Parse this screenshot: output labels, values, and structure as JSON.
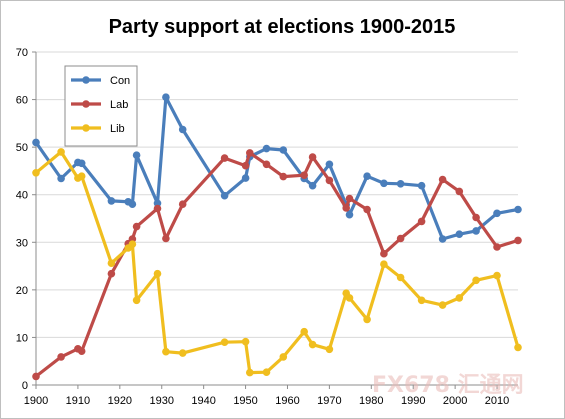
{
  "chart_data": {
    "type": "line",
    "title": "Party support at elections 1900-2015",
    "xlabel": "",
    "ylabel": "",
    "xlim": [
      1900,
      2015
    ],
    "ylim": [
      0,
      70
    ],
    "xticks": [
      1900,
      1910,
      1920,
      1930,
      1940,
      1950,
      1960,
      1970,
      1980,
      1990,
      2000,
      2010
    ],
    "yticks": [
      0,
      10,
      20,
      30,
      40,
      50,
      60,
      70
    ],
    "grid": "horizontal",
    "legend": "top-left",
    "series": [
      {
        "name": "Con",
        "color": "#4a7ebb",
        "points": [
          [
            1900,
            51
          ],
          [
            1906,
            43.4
          ],
          [
            1910,
            46.8
          ],
          [
            1910.9,
            46.6
          ],
          [
            1918,
            38.7
          ],
          [
            1922,
            38.5
          ],
          [
            1923,
            38
          ],
          [
            1924,
            48.3
          ],
          [
            1929,
            38.2
          ],
          [
            1931,
            60.5
          ],
          [
            1935,
            53.7
          ],
          [
            1945,
            39.8
          ],
          [
            1950,
            43.5
          ],
          [
            1951,
            48
          ],
          [
            1955,
            49.7
          ],
          [
            1959,
            49.4
          ],
          [
            1964,
            43.4
          ],
          [
            1966,
            41.9
          ],
          [
            1970,
            46.4
          ],
          [
            1974,
            37.9
          ],
          [
            1974.8,
            35.8
          ],
          [
            1979,
            43.9
          ],
          [
            1983,
            42.4
          ],
          [
            1987,
            42.3
          ],
          [
            1992,
            41.9
          ],
          [
            1997,
            30.7
          ],
          [
            2001,
            31.7
          ],
          [
            2005,
            32.4
          ],
          [
            2010,
            36.1
          ],
          [
            2015,
            36.9
          ]
        ]
      },
      {
        "name": "Lab",
        "color": "#be4b48",
        "points": [
          [
            1900,
            1.8
          ],
          [
            1906,
            5.9
          ],
          [
            1910,
            7.6
          ],
          [
            1910.9,
            7.1
          ],
          [
            1918,
            23.4
          ],
          [
            1922,
            29.7
          ],
          [
            1923,
            30.7
          ],
          [
            1924,
            33.3
          ],
          [
            1929,
            37.1
          ],
          [
            1931,
            30.8
          ],
          [
            1935,
            38
          ],
          [
            1945,
            47.7
          ],
          [
            1950,
            46.1
          ],
          [
            1951,
            48.8
          ],
          [
            1955,
            46.4
          ],
          [
            1959,
            43.8
          ],
          [
            1964,
            44.1
          ],
          [
            1966,
            47.9
          ],
          [
            1970,
            43
          ],
          [
            1974,
            37.2
          ],
          [
            1974.8,
            39.2
          ],
          [
            1979,
            36.9
          ],
          [
            1983,
            27.6
          ],
          [
            1987,
            30.8
          ],
          [
            1992,
            34.4
          ],
          [
            1997,
            43.2
          ],
          [
            2001,
            40.7
          ],
          [
            2005,
            35.2
          ],
          [
            2010,
            29
          ],
          [
            2015,
            30.4
          ]
        ]
      },
      {
        "name": "Lib",
        "color": "#f0be1f",
        "points": [
          [
            1900,
            44.6
          ],
          [
            1906,
            49
          ],
          [
            1910,
            43.5
          ],
          [
            1910.9,
            43.9
          ],
          [
            1918,
            25.6
          ],
          [
            1922,
            28.8
          ],
          [
            1923,
            29.6
          ],
          [
            1924,
            17.8
          ],
          [
            1929,
            23.4
          ],
          [
            1931,
            7
          ],
          [
            1935,
            6.7
          ],
          [
            1945,
            9
          ],
          [
            1950,
            9.1
          ],
          [
            1951,
            2.6
          ],
          [
            1955,
            2.7
          ],
          [
            1959,
            5.9
          ],
          [
            1964,
            11.2
          ],
          [
            1966,
            8.5
          ],
          [
            1970,
            7.5
          ],
          [
            1974,
            19.3
          ],
          [
            1974.8,
            18.3
          ],
          [
            1979,
            13.8
          ],
          [
            1983,
            25.4
          ],
          [
            1987,
            22.6
          ],
          [
            1992,
            17.8
          ],
          [
            1997,
            16.8
          ],
          [
            2001,
            18.3
          ],
          [
            2005,
            22
          ],
          [
            2010,
            23
          ],
          [
            2015,
            7.9
          ]
        ]
      }
    ]
  },
  "watermark": {
    "text": "FX678 汇通网"
  }
}
